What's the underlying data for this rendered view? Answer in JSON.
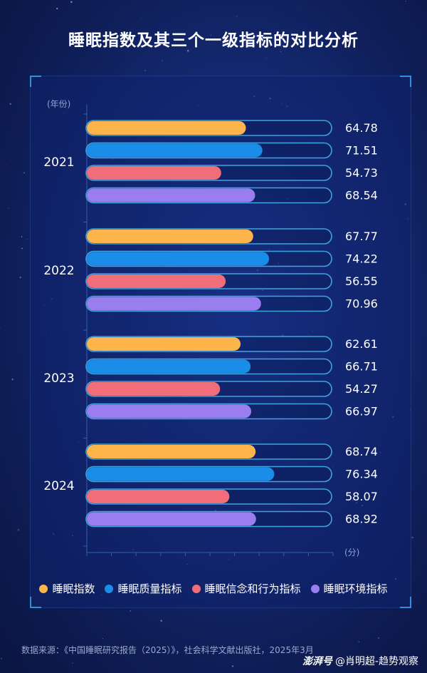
{
  "title": "睡眠指数及其三个一级指标的对比分析",
  "colors": {
    "series": [
      "#fdb44b",
      "#1a8de8",
      "#f26d7a",
      "#9a7ef0"
    ],
    "track_border": "#3fa4dc"
  },
  "chart_data": {
    "type": "bar",
    "orientation": "horizontal",
    "ylabel": "(年份)",
    "xlabel": "(分)",
    "xlim": [
      0,
      100
    ],
    "categories": [
      "2021",
      "2022",
      "2023",
      "2024"
    ],
    "series": [
      {
        "name": "睡眠指数",
        "values": [
          64.78,
          67.77,
          62.61,
          68.74
        ]
      },
      {
        "name": "睡眠质量指标",
        "values": [
          71.51,
          74.22,
          66.71,
          76.34
        ]
      },
      {
        "name": "睡眠信念和行为指标",
        "values": [
          54.73,
          56.55,
          54.27,
          58.07
        ]
      },
      {
        "name": "睡眠环境指标",
        "values": [
          68.54,
          70.96,
          66.97,
          68.92
        ]
      }
    ],
    "value_labels": [
      [
        "64.78",
        "71.51",
        "54.73",
        "68.54"
      ],
      [
        "67.77",
        "74.22",
        "56.55",
        "70.96"
      ],
      [
        "62.61",
        "66.71",
        "54.27",
        "66.97"
      ],
      [
        "68.74",
        "76.34",
        "58.07",
        "68.92"
      ]
    ],
    "legend_position": "bottom"
  },
  "legend": [
    "睡眠指数",
    "睡眠质量指标",
    "睡眠信念和行为指标",
    "睡眠环境指标"
  ],
  "source": "数据来源：《中国睡眠研究报告（2025）》，社会科学文献出版社，2025年3月",
  "watermark": {
    "logo": "澎湃号",
    "author": "@肖明超-趋势观察"
  }
}
